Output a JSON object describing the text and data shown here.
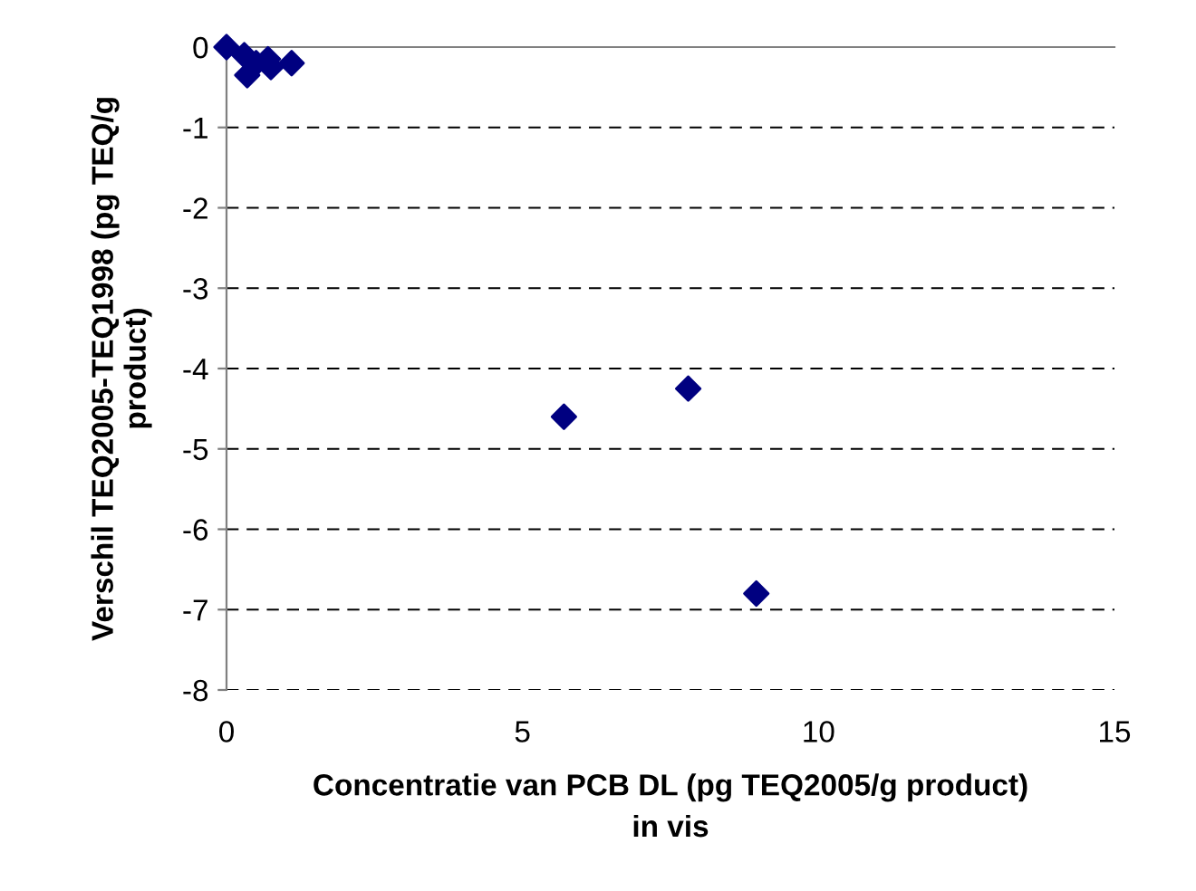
{
  "chart_data": {
    "type": "scatter",
    "xlabel": "Concentratie van PCB DL (pg TEQ2005/g product)\nin vis",
    "ylabel": "Verschil TEQ2005-TEQ1998 (pg TEQ/g\nproduct)",
    "series": [
      {
        "color": "#000080",
        "x": [
          0,
          0.3,
          0.35,
          0.5,
          0.7,
          0.75,
          1.1,
          5.7,
          7.8,
          8.95
        ],
        "values": [
          0,
          -0.1,
          -0.35,
          -0.2,
          -0.15,
          -0.25,
          -0.2,
          -4.6,
          -4.25,
          -6.8
        ]
      }
    ],
    "xlim": [
      0,
      15
    ],
    "xticks": [
      0,
      5,
      10,
      15
    ],
    "ylim": [
      -8,
      0
    ],
    "yticks": [
      -8,
      -7,
      -6,
      -5,
      -4,
      -3,
      -2,
      -1,
      0
    ],
    "grid": "y",
    "marker": "diamond",
    "legend": false
  }
}
